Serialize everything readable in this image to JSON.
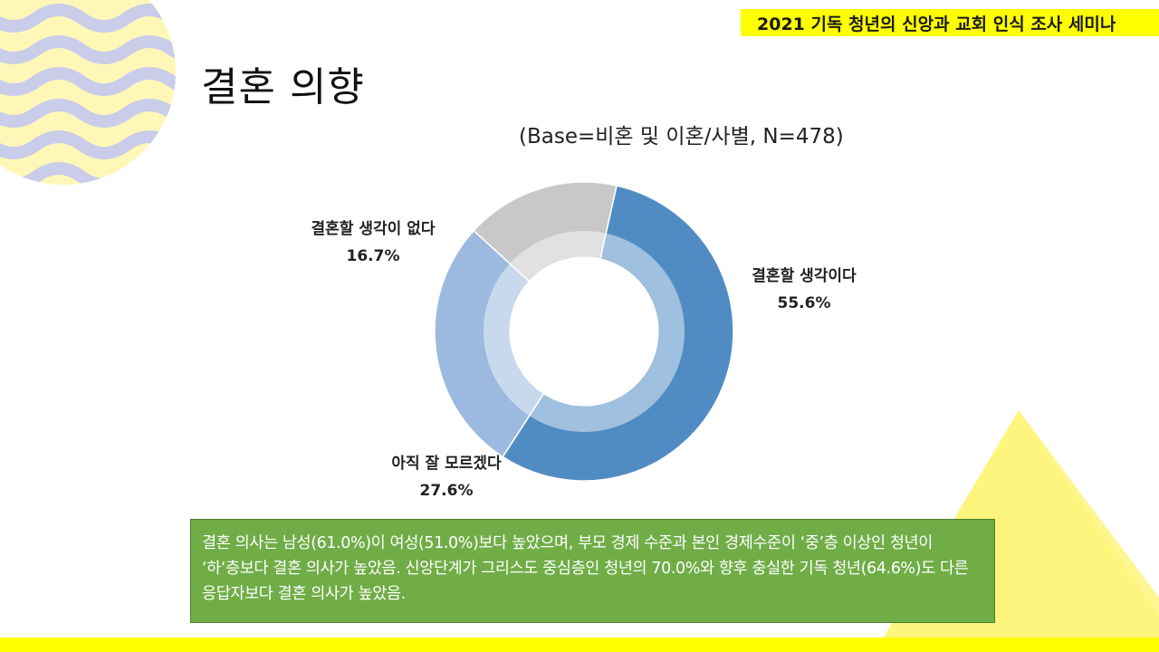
{
  "header": {
    "title": "2021 기독 청년의 신앙과 교회 인식 조사 세미나"
  },
  "slide": {
    "title": "결혼 의향",
    "base_note": "(Base=비혼 및 이혼/사별, N=478)"
  },
  "chart_data": {
    "type": "pie",
    "donut": true,
    "categories": [
      "결혼할 생각이다",
      "아직 잘 모르겠다",
      "결혼할 생각이 없다"
    ],
    "values": [
      55.6,
      27.6,
      16.7
    ],
    "value_labels": [
      "55.6%",
      "27.6%",
      "16.7%"
    ],
    "colors": [
      "#508cc3",
      "#9cbae0",
      "#c8c8c8"
    ],
    "title": "",
    "legend": "none"
  },
  "summary": {
    "text": "결혼 의사는 남성(61.0%)이 여성(51.0%)보다 높았으며, 부모 경제 수준과  본인 경제수준이 ‘중’층 이상인 청년이 ‘하‘층보다 결혼 의사가 높았음.  신앙단계가 그리스도 중심층인 청년의 70.0%와 향후 충실한 기독 청년(64.6%)도 다른 응답자보다 결혼 의사가 높았음."
  },
  "decor": {
    "banner_color": "#ffff00",
    "bar_color": "#ffff00",
    "wave_color": "#c9cdea",
    "circle_color": "#fff7b8",
    "triangle_color": "#fdf57e",
    "box_color": "#70ad47"
  }
}
